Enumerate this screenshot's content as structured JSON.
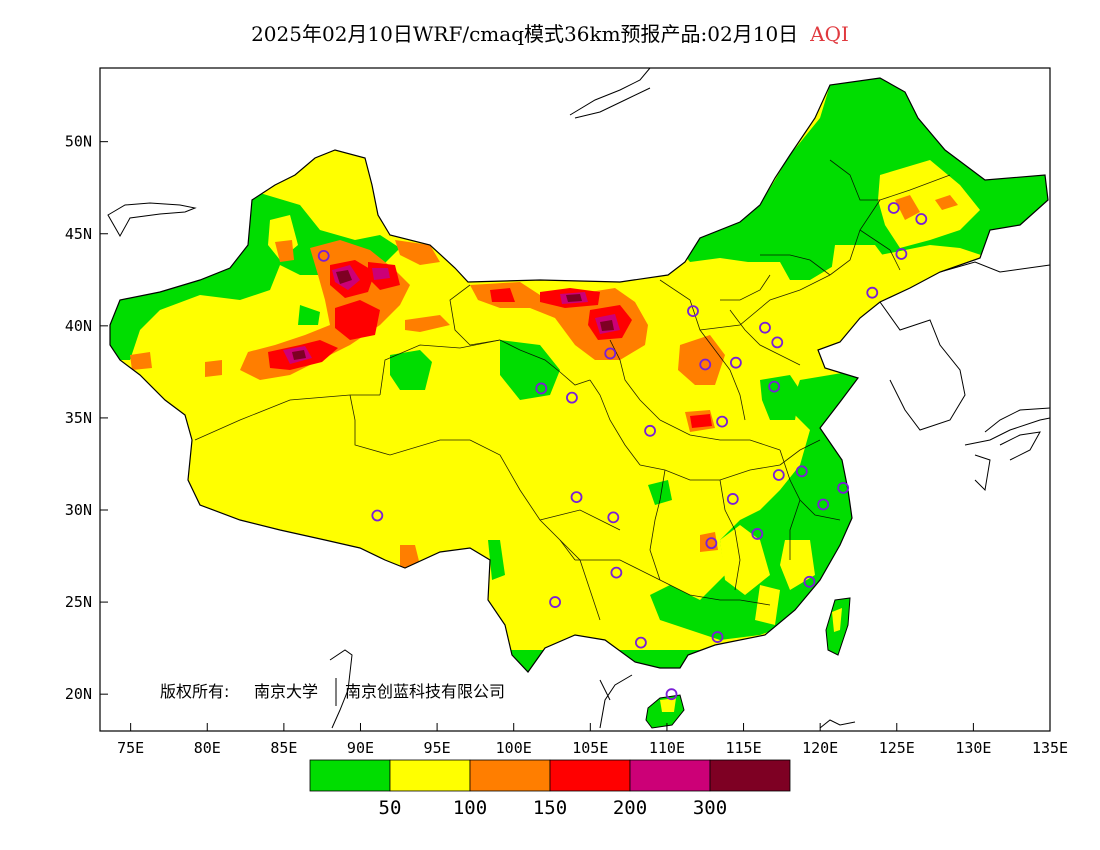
{
  "title": {
    "main": "2025年02月10日WRF/cmaq模式36km预报产品:02月10日",
    "variable": "AQI"
  },
  "axes": {
    "lat_ticks": [
      "20N",
      "25N",
      "30N",
      "35N",
      "40N",
      "45N",
      "50N"
    ],
    "lon_ticks": [
      "75E",
      "80E",
      "85E",
      "90E",
      "95E",
      "100E",
      "105E",
      "110E",
      "115E",
      "120E",
      "125E",
      "130E",
      "135E"
    ],
    "lon_range": [
      73,
      135
    ],
    "lat_range": [
      18,
      54
    ]
  },
  "copyright": {
    "prefix": "版权所有:",
    "org1": "南京大学",
    "org2": "南京创蓝科技有限公司"
  },
  "legend": {
    "colors": [
      "#00dd00",
      "#ffff00",
      "#ff7e00",
      "#ff0000",
      "#cc0077",
      "#7e0023"
    ],
    "labels": [
      "50",
      "100",
      "150",
      "200",
      "300"
    ]
  },
  "stations": [
    [
      87.6,
      43.8
    ],
    [
      91.1,
      29.7
    ],
    [
      101.8,
      36.6
    ],
    [
      103.8,
      36.1
    ],
    [
      106.3,
      38.5
    ],
    [
      104.1,
      30.7
    ],
    [
      106.5,
      29.6
    ],
    [
      102.7,
      25.0
    ],
    [
      106.7,
      26.6
    ],
    [
      108.3,
      22.8
    ],
    [
      110.3,
      20.0
    ],
    [
      108.9,
      34.3
    ],
    [
      111.7,
      40.8
    ],
    [
      112.5,
      37.9
    ],
    [
      113.6,
      34.8
    ],
    [
      114.5,
      38.0
    ],
    [
      116.4,
      39.9
    ],
    [
      117.2,
      39.1
    ],
    [
      117.0,
      36.7
    ],
    [
      114.3,
      30.6
    ],
    [
      112.9,
      28.2
    ],
    [
      115.9,
      28.7
    ],
    [
      117.3,
      31.9
    ],
    [
      118.8,
      32.1
    ],
    [
      120.2,
      30.3
    ],
    [
      121.5,
      31.2
    ],
    [
      119.3,
      26.1
    ],
    [
      113.3,
      23.1
    ],
    [
      123.4,
      41.8
    ],
    [
      125.3,
      43.9
    ],
    [
      126.6,
      45.8
    ],
    [
      124.8,
      46.4
    ]
  ]
}
